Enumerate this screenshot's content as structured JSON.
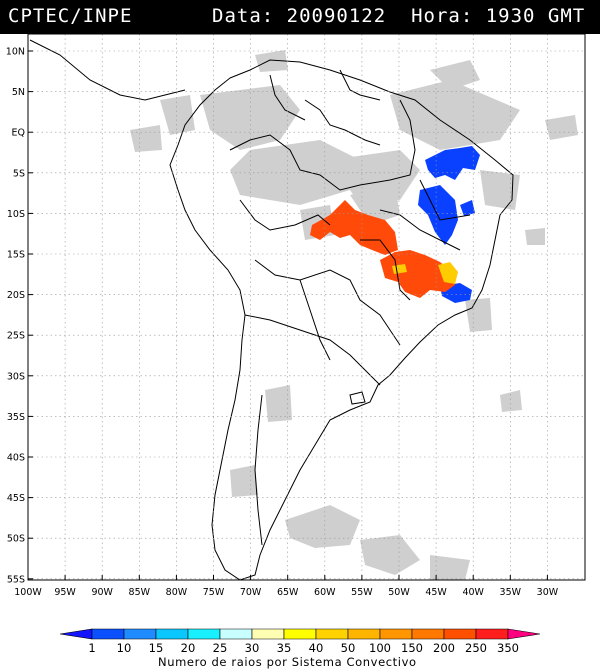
{
  "header": {
    "source": "CPTEC/INPE",
    "date_label": "Data:",
    "date": "20090122",
    "time_label": "Hora:",
    "time": "1930 GMT"
  },
  "map": {
    "lat_labels": [
      "10N",
      "5N",
      "EQ",
      "5S",
      "10S",
      "15S",
      "20S",
      "25S",
      "30S",
      "35S",
      "40S",
      "45S",
      "50S",
      "55S"
    ],
    "lon_labels": [
      "100W",
      "95W",
      "90W",
      "85W",
      "80W",
      "75W",
      "70W",
      "65W",
      "60W",
      "55W",
      "50W",
      "45W",
      "40W",
      "35W",
      "30W"
    ],
    "grid": true
  },
  "legend": {
    "ticks": [
      "1",
      "10",
      "15",
      "20",
      "25",
      "30",
      "35",
      "40",
      "50",
      "100",
      "150",
      "200",
      "250",
      "350"
    ],
    "colors": [
      "#1414ff",
      "#0a50ff",
      "#1e8cff",
      "#0ac8ff",
      "#18f0ff",
      "#c8ffff",
      "#ffffb4",
      "#ffff00",
      "#ffd200",
      "#ffb400",
      "#ff9600",
      "#ff7800",
      "#ff5000",
      "#ff1e1e",
      "#ff0080"
    ],
    "caption": "Numero de raios por Sistema Convectivo"
  },
  "colors": {
    "cloud": "#cfcfcf",
    "blue_cells": "#0a40ff",
    "orange_cells": "#ff4a0a",
    "yellow_cells": "#ffcc00"
  }
}
